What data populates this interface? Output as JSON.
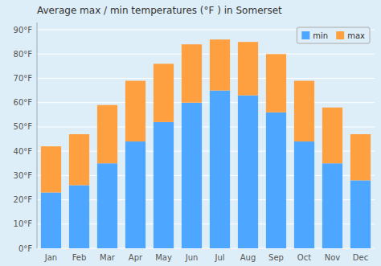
{
  "chart_data": {
    "type": "bar",
    "stacked": true,
    "title": "Average max / min temperatures (°F ) in Somerset",
    "categories": [
      "Jan",
      "Feb",
      "Mar",
      "Apr",
      "May",
      "Jun",
      "Jul",
      "Aug",
      "Sep",
      "Oct",
      "Nov",
      "Dec"
    ],
    "series": [
      {
        "name": "min",
        "color": "#4da6ff",
        "values": [
          23,
          26,
          35,
          44,
          52,
          60,
          65,
          63,
          56,
          44,
          35,
          28
        ]
      },
      {
        "name": "max",
        "color": "#ffa040",
        "values": [
          19,
          21,
          24,
          25,
          24,
          24,
          21,
          22,
          24,
          25,
          23,
          19
        ]
      }
    ],
    "ylim": [
      0,
      93
    ],
    "yticks": [
      {
        "value": 0,
        "label": "0°F"
      },
      {
        "value": 10,
        "label": "10°F"
      },
      {
        "value": 20,
        "label": "20°F"
      },
      {
        "value": 30,
        "label": "30°F"
      },
      {
        "value": 40,
        "label": "40°F"
      },
      {
        "value": 50,
        "label": "50°F"
      },
      {
        "value": 60,
        "label": "60°F"
      },
      {
        "value": 70,
        "label": "70°F"
      },
      {
        "value": 80,
        "label": "80°F"
      },
      {
        "value": 90,
        "label": "90°F"
      }
    ],
    "grid": true,
    "legend": "upper right"
  }
}
